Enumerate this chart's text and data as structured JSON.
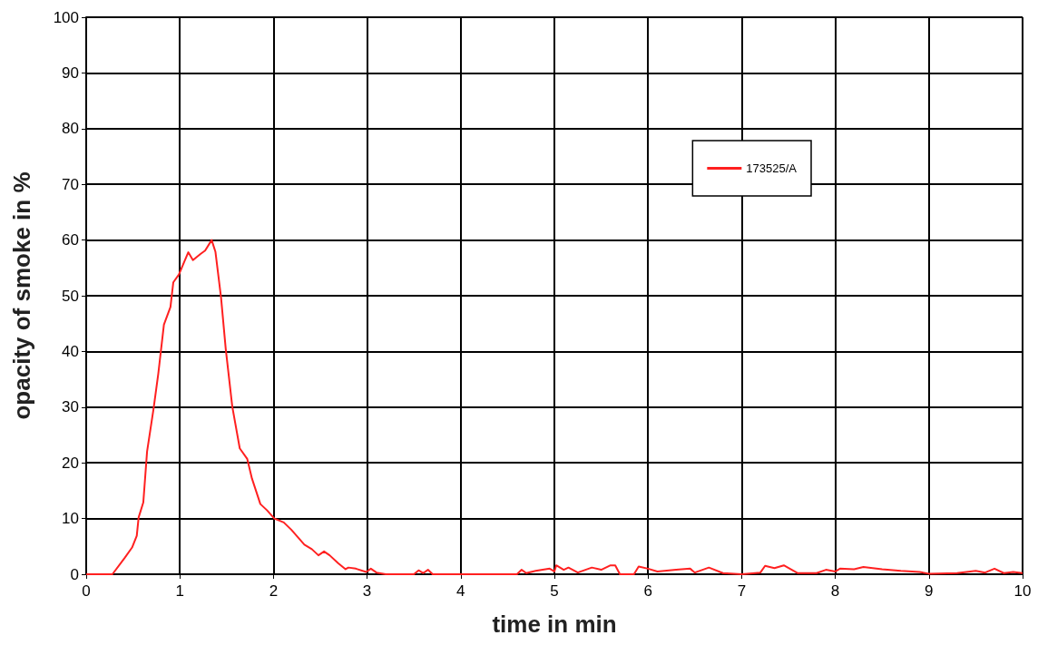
{
  "chart_data": {
    "type": "line",
    "xlabel": "time in min",
    "ylabel": "opacity of smoke in %",
    "xlim": [
      0,
      10
    ],
    "xticks": [
      0,
      1,
      2,
      3,
      4,
      5,
      6,
      7,
      8,
      9,
      10
    ],
    "ylim": [
      0,
      100
    ],
    "yticks": [
      0,
      10,
      20,
      30,
      40,
      50,
      60,
      70,
      80,
      90,
      100
    ],
    "grid": true,
    "legend": "top right",
    "marker": "none",
    "line_style": "solid",
    "series": [
      {
        "name": "173525/A",
        "color": "#ff2020",
        "x": [
          0,
          0.28,
          0.41,
          0.49,
          0.54,
          0.56,
          0.61,
          0.65,
          0.72,
          0.77,
          0.83,
          0.9,
          0.93,
          0.99,
          1.09,
          1.14,
          1.22,
          1.27,
          1.34,
          1.38,
          1.44,
          1.49,
          1.56,
          1.64,
          1.72,
          1.77,
          1.86,
          1.93,
          2.01,
          2.11,
          2.19,
          2.33,
          2.41,
          2.48,
          2.54,
          2.6,
          2.69,
          2.77,
          2.8,
          2.88,
          2.99,
          3.04,
          3.1,
          3.2,
          3.5,
          3.55,
          3.6,
          3.65,
          3.7,
          4.6,
          4.65,
          4.7,
          4.8,
          4.95,
          5.0,
          5.02,
          5.1,
          5.15,
          5.25,
          5.4,
          5.5,
          5.6,
          5.65,
          5.7,
          5.85,
          5.9,
          6.0,
          6.1,
          6.3,
          6.45,
          6.5,
          6.65,
          6.8,
          7.0,
          7.2,
          7.25,
          7.35,
          7.45,
          7.6,
          7.8,
          7.9,
          8.0,
          8.05,
          8.2,
          8.3,
          8.5,
          8.7,
          8.9,
          9.0,
          9.3,
          9.5,
          9.6,
          9.7,
          9.8,
          9.9,
          10
        ],
        "values": [
          0,
          0,
          2.9,
          4.8,
          6.9,
          10.2,
          12.9,
          22,
          29.8,
          36,
          44.8,
          48,
          52.4,
          53.8,
          57.8,
          56.4,
          57.5,
          58.1,
          60,
          57.9,
          49.7,
          40.5,
          30.1,
          22.6,
          20.7,
          17.2,
          12.6,
          11.5,
          10,
          9.3,
          8,
          5.3,
          4.5,
          3.4,
          4.1,
          3.4,
          2,
          0.9,
          1.2,
          1,
          0.4,
          1,
          0.3,
          0,
          0,
          0.7,
          0.2,
          0.8,
          0,
          0,
          0.8,
          0.2,
          0.6,
          1,
          0.5,
          1.6,
          0.8,
          1.2,
          0.3,
          1.2,
          0.8,
          1.6,
          1.6,
          0,
          0,
          1.4,
          1,
          0.5,
          0.8,
          1,
          0.3,
          1.2,
          0.2,
          0,
          0.3,
          1.5,
          1.1,
          1.6,
          0.2,
          0.2,
          0.8,
          0.5,
          1,
          0.9,
          1.3,
          0.9,
          0.6,
          0.4,
          0.1,
          0.2,
          0.6,
          0.3,
          1,
          0.2,
          0.4,
          0.2
        ]
      }
    ]
  }
}
